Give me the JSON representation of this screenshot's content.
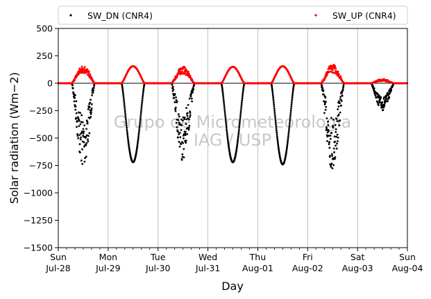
{
  "chart_data": {
    "type": "scatter",
    "title": "",
    "xlabel": "Day",
    "ylabel": "Solar radiation (Wm−2)",
    "ylim": [
      -1500,
      500
    ],
    "yticks": [
      500,
      250,
      0,
      -250,
      -500,
      -750,
      -1000,
      -1250,
      -1500
    ],
    "ytick_labels": [
      "500",
      "250",
      "0",
      "−250",
      "−500",
      "−750",
      "−1000",
      "−1250",
      "−1500"
    ],
    "xlim": [
      0,
      7
    ],
    "xticks": [
      {
        "day": 0,
        "weekday": "Sun",
        "date": "Jul-28"
      },
      {
        "day": 1,
        "weekday": "Mon",
        "date": "Jul-29"
      },
      {
        "day": 2,
        "weekday": "Tue",
        "date": "Jul-30"
      },
      {
        "day": 3,
        "weekday": "Wed",
        "date": "Jul-31"
      },
      {
        "day": 4,
        "weekday": "Thu",
        "date": "Aug-01"
      },
      {
        "day": 5,
        "weekday": "Fri",
        "date": "Aug-02"
      },
      {
        "day": 6,
        "weekday": "Sat",
        "date": "Aug-03"
      },
      {
        "day": 7,
        "weekday": "Sun",
        "date": "Aug-04"
      }
    ],
    "grid": "vertical",
    "legend_position": "top",
    "watermark": [
      "Grupo de Micrometeorologia",
      "IAG / USP"
    ],
    "series": [
      {
        "name": "SW_DN (CNR4)",
        "color": "#000000",
        "daily_peak": [
          -780,
          -720,
          -710,
          -720,
          -740,
          -800,
          -250
        ],
        "daily_pattern": [
          "cloudy",
          "clear",
          "cloudy",
          "clear",
          "clear",
          "cloudy",
          "overcast"
        ]
      },
      {
        "name": "SW_UP (CNR4)",
        "color": "#ff0000",
        "daily_peak": [
          165,
          155,
          155,
          150,
          155,
          175,
          40
        ],
        "daily_pattern": [
          "cloudy",
          "clear",
          "cloudy",
          "clear",
          "clear",
          "cloudy",
          "overcast"
        ]
      }
    ]
  }
}
